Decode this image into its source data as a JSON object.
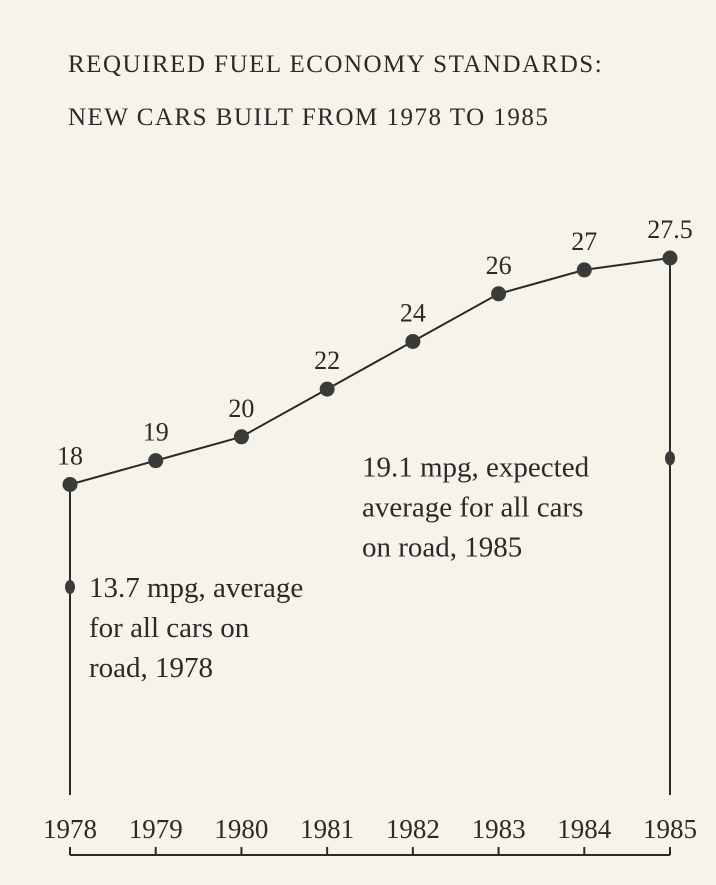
{
  "chart_data": {
    "type": "line",
    "title": [
      "REQUIRED FUEL ECONOMY STANDARDS:",
      "NEW CARS BUILT FROM 1978 TO 1985"
    ],
    "categories": [
      "1978",
      "1979",
      "1980",
      "1981",
      "1982",
      "1983",
      "1984",
      "1985"
    ],
    "values": [
      18,
      19,
      20,
      22,
      24,
      26,
      27,
      27.5
    ],
    "value_labels": [
      "18",
      "19",
      "20",
      "22",
      "24",
      "26",
      "27",
      "27.5"
    ],
    "ylim": [
      13.7,
      27.5
    ],
    "annotations": [
      {
        "year": "1978",
        "value": 13.7,
        "lines": [
          "13.7 mpg, average",
          "for all cars on",
          "road, 1978"
        ]
      },
      {
        "year": "1985",
        "value": 19.1,
        "lines": [
          "19.1 mpg, expected",
          "average for all cars",
          "on road, 1985"
        ]
      }
    ],
    "grid": false,
    "legend": "none"
  }
}
